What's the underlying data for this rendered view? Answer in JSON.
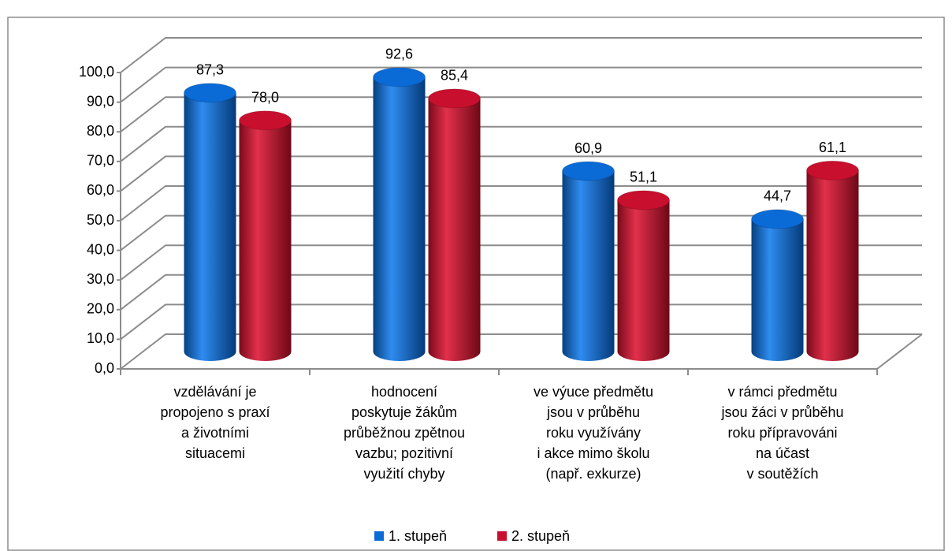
{
  "chart_data": {
    "type": "bar3d",
    "categories": [
      "vzdělávání je\npropojeno s praxí\na životními\nsituacemi",
      "hodnocení\nposkytuje žákům\nprůběžnou zpětnou\nvazbu; pozitivní\nvyužití chyby",
      "ve výuce předmětu\njsou v průběhu\nroku využívány\ni akce mimo školu\n(např. exkurze)",
      "v rámci předmětu\njsou žáci v průběhu\nroku přípravováni\nna účast\nv soutěžích"
    ],
    "series": [
      {
        "name": "1. stupeň",
        "color": "#0a6ad6",
        "values": [
          87.3,
          92.6,
          60.9,
          44.7
        ],
        "value_labels": [
          "87,3",
          "92,6",
          "60,9",
          "44,7"
        ]
      },
      {
        "name": "2. stupeň",
        "color": "#c8102e",
        "values": [
          78.0,
          85.4,
          51.1,
          61.1
        ],
        "value_labels": [
          "78,0",
          "85,4",
          "51,1",
          "61,1"
        ]
      }
    ],
    "ylim": [
      0,
      100
    ],
    "yticks": [
      {
        "value": 0,
        "label": "0,0"
      },
      {
        "value": 10,
        "label": "10,0"
      },
      {
        "value": 20,
        "label": "20,0"
      },
      {
        "value": 30,
        "label": "30,0"
      },
      {
        "value": 40,
        "label": "40,0"
      },
      {
        "value": 50,
        "label": "50,0"
      },
      {
        "value": 60,
        "label": "60,0"
      },
      {
        "value": 70,
        "label": "70,0"
      },
      {
        "value": 80,
        "label": "80,0"
      },
      {
        "value": 90,
        "label": "90,0"
      },
      {
        "value": 100,
        "label": "100,0"
      }
    ],
    "grid": true
  }
}
